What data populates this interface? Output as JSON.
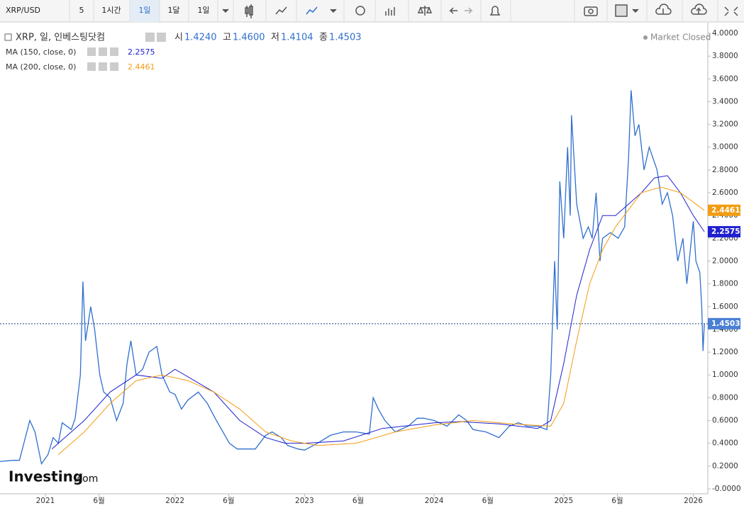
{
  "toolbar": [
    "XRP/USD",
    "5",
    "1시간",
    "1일",
    "1달",
    "1일"
  ],
  "status": "Market Closed",
  "brand": {
    "name": "Investing",
    "suffix": ".com"
  },
  "chart_data": {
    "type": "line",
    "ohlc": [
      {
        "label": "시",
        "value": "1.4240"
      },
      {
        "label": "고",
        "value": "1.4600"
      },
      {
        "label": "저",
        "value": "1.4104"
      },
      {
        "label": "종",
        "value": "1.4503"
      }
    ],
    "xlim": [
      2020.65,
      2026.112
    ],
    "xticks": [
      2021,
      {
        "value": 2021.414,
        "label": "6월"
      },
      2022,
      {
        "value": 2022.414,
        "label": "6월"
      },
      2023,
      {
        "value": 2023.414,
        "label": "6월"
      },
      2024,
      {
        "value": 2024.414,
        "label": "6월"
      },
      2025,
      {
        "value": 2025.414,
        "label": "6월"
      },
      2026
    ],
    "ylim": [
      -0.044,
      4.056
    ],
    "yticks": [
      {
        "value": 0,
        "label": "-0.0000"
      },
      {
        "value": 0.2,
        "label": "0.2000"
      },
      {
        "value": 0.4,
        "label": "0.4000"
      },
      {
        "value": 0.6,
        "label": "0.6000"
      },
      {
        "value": 0.8,
        "label": "0.8000"
      },
      {
        "value": 1,
        "label": "1.0000"
      },
      {
        "value": 1.2,
        "label": "1.2000"
      },
      {
        "value": 1.4,
        "label": "1.4000"
      },
      {
        "value": 1.6,
        "label": "1.6000"
      },
      {
        "value": 1.8,
        "label": "1.8000"
      },
      {
        "value": 2,
        "label": "2.0000"
      },
      {
        "value": 2.2,
        "label": "2.2000"
      },
      {
        "value": 2.4,
        "label": "2.4000"
      },
      {
        "value": 2.6,
        "label": "2.6000"
      },
      {
        "value": 2.8,
        "label": "2.8000"
      },
      {
        "value": 3,
        "label": "3.0000"
      },
      {
        "value": 3.2,
        "label": "3.2000"
      },
      {
        "value": 3.4,
        "label": "3.4000"
      },
      {
        "value": 3.6,
        "label": "3.6000"
      },
      {
        "value": 3.8,
        "label": "3.8000"
      },
      {
        "value": 4,
        "label": "4.0000"
      }
    ],
    "series": [
      {
        "name": "XRP, 일, 인베스팅닷컴",
        "color": "#2f6fce",
        "x": [
          2020.65,
          2020.75,
          2020.8,
          2020.88,
          2020.92,
          2020.97,
          2021.02,
          2021.06,
          2021.1,
          2021.13,
          2021.2,
          2021.23,
          2021.27,
          2021.29,
          2021.31,
          2021.35,
          2021.38,
          2021.42,
          2021.45,
          2021.5,
          2021.55,
          2021.6,
          2021.63,
          2021.66,
          2021.7,
          2021.75,
          2021.8,
          2021.86,
          2021.9,
          2021.96,
          2022,
          2022.05,
          2022.1,
          2022.18,
          2022.25,
          2022.32,
          2022.37,
          2022.42,
          2022.48,
          2022.55,
          2022.62,
          2022.7,
          2022.75,
          2022.82,
          2022.87,
          2022.95,
          2023,
          2023.1,
          2023.2,
          2023.3,
          2023.4,
          2023.5,
          2023.53,
          2023.57,
          2023.62,
          2023.7,
          2023.8,
          2023.87,
          2023.92,
          2024,
          2024.1,
          2024.19,
          2024.25,
          2024.3,
          2024.4,
          2024.5,
          2024.58,
          2024.65,
          2024.72,
          2024.8,
          2024.87,
          2024.9,
          2024.93,
          2024.95,
          2024.97,
          2025,
          2025.03,
          2025.05,
          2025.06,
          2025.1,
          2025.15,
          2025.19,
          2025.22,
          2025.25,
          2025.28,
          2025.3,
          2025.36,
          2025.42,
          2025.47,
          2025.5,
          2025.52,
          2025.55,
          2025.58,
          2025.62,
          2025.66,
          2025.72,
          2025.76,
          2025.8,
          2025.84,
          2025.88,
          2025.92,
          2025.95,
          2026,
          2026.02,
          2026.05,
          2026.065,
          2026.075,
          2026.085
        ],
        "values": [
          0.24,
          0.25,
          0.25,
          0.6,
          0.5,
          0.22,
          0.3,
          0.45,
          0.4,
          0.58,
          0.52,
          0.62,
          1.0,
          1.82,
          1.3,
          1.6,
          1.4,
          1.0,
          0.85,
          0.8,
          0.6,
          0.75,
          1.1,
          1.3,
          1.0,
          1.05,
          1.2,
          1.25,
          1.0,
          0.85,
          0.83,
          0.7,
          0.78,
          0.85,
          0.75,
          0.6,
          0.5,
          0.4,
          0.35,
          0.35,
          0.35,
          0.47,
          0.5,
          0.45,
          0.38,
          0.35,
          0.34,
          0.4,
          0.47,
          0.5,
          0.5,
          0.48,
          0.8,
          0.7,
          0.6,
          0.5,
          0.55,
          0.62,
          0.62,
          0.6,
          0.55,
          0.65,
          0.6,
          0.52,
          0.5,
          0.45,
          0.55,
          0.58,
          0.55,
          0.55,
          0.52,
          1.0,
          2.0,
          1.4,
          2.7,
          2.2,
          3.0,
          2.4,
          3.28,
          2.5,
          2.2,
          2.3,
          2.2,
          2.6,
          2.0,
          2.2,
          2.25,
          2.2,
          2.3,
          2.9,
          3.5,
          3.1,
          3.2,
          2.8,
          3.0,
          2.8,
          2.5,
          2.6,
          2.4,
          2.0,
          2.2,
          1.8,
          2.35,
          2.0,
          1.9,
          1.6,
          1.21,
          1.4503
        ]
      },
      {
        "name": "MA (150, close, 0)",
        "color": "#2020d0",
        "x": [
          2021.05,
          2021.3,
          2021.5,
          2021.7,
          2021.9,
          2022,
          2022.3,
          2022.5,
          2022.7,
          2022.85,
          2023,
          2023.3,
          2023.6,
          2024,
          2024.2,
          2024.5,
          2024.8,
          2024.9,
          2025,
          2025.1,
          2025.2,
          2025.3,
          2025.4,
          2025.5,
          2025.6,
          2025.7,
          2025.8,
          2025.9,
          2026,
          2026.085
        ],
        "values": [
          0.35,
          0.6,
          0.85,
          1.0,
          0.97,
          1.05,
          0.85,
          0.6,
          0.45,
          0.4,
          0.4,
          0.42,
          0.53,
          0.58,
          0.59,
          0.57,
          0.53,
          0.6,
          1.1,
          1.7,
          2.1,
          2.4,
          2.4,
          2.5,
          2.6,
          2.73,
          2.75,
          2.6,
          2.4,
          2.2575
        ]
      },
      {
        "name": "MA (200, close, 0)",
        "color": "#f39c12",
        "x": [
          2021.1,
          2021.3,
          2021.5,
          2021.7,
          2021.9,
          2022.1,
          2022.3,
          2022.5,
          2022.7,
          2022.9,
          2023.1,
          2023.4,
          2023.7,
          2024,
          2024.3,
          2024.6,
          2024.9,
          2025,
          2025.1,
          2025.2,
          2025.3,
          2025.4,
          2025.5,
          2025.6,
          2025.75,
          2025.9,
          2026.085
        ],
        "values": [
          0.3,
          0.5,
          0.75,
          0.95,
          1.0,
          0.95,
          0.85,
          0.7,
          0.5,
          0.42,
          0.38,
          0.4,
          0.5,
          0.56,
          0.6,
          0.57,
          0.55,
          0.75,
          1.3,
          1.8,
          2.1,
          2.3,
          2.45,
          2.6,
          2.65,
          2.6,
          2.4461
        ]
      }
    ]
  }
}
